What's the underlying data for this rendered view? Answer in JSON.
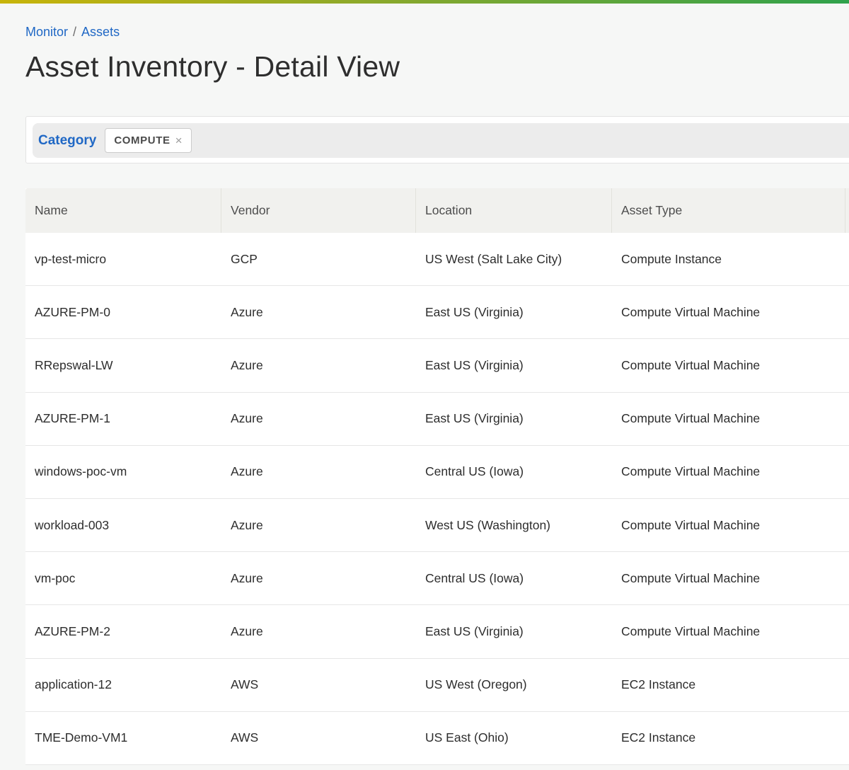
{
  "page": {
    "breadcrumb": {
      "items": [
        "Monitor",
        "Assets"
      ],
      "separator": "/"
    },
    "title": "Asset Inventory - Detail View"
  },
  "filters": {
    "field_label": "Category",
    "chips": [
      {
        "label": "COMPUTE",
        "remove_icon": "×"
      }
    ]
  },
  "table": {
    "columns": [
      "Name",
      "Vendor",
      "Location",
      "Asset Type"
    ],
    "rows": [
      {
        "name": "vp-test-micro",
        "vendor": "GCP",
        "location": "US West (Salt Lake City)",
        "asset_type": "Compute Instance"
      },
      {
        "name": "AZURE-PM-0",
        "vendor": "Azure",
        "location": "East US (Virginia)",
        "asset_type": "Compute Virtual Machine"
      },
      {
        "name": "RRepswal-LW",
        "vendor": "Azure",
        "location": "East US (Virginia)",
        "asset_type": "Compute Virtual Machine"
      },
      {
        "name": "AZURE-PM-1",
        "vendor": "Azure",
        "location": "East US (Virginia)",
        "asset_type": "Compute Virtual Machine"
      },
      {
        "name": "windows-poc-vm",
        "vendor": "Azure",
        "location": "Central US (Iowa)",
        "asset_type": "Compute Virtual Machine"
      },
      {
        "name": "workload-003",
        "vendor": "Azure",
        "location": "West US (Washington)",
        "asset_type": "Compute Virtual Machine"
      },
      {
        "name": "vm-poc",
        "vendor": "Azure",
        "location": "Central US (Iowa)",
        "asset_type": "Compute Virtual Machine"
      },
      {
        "name": "AZURE-PM-2",
        "vendor": "Azure",
        "location": "East US (Virginia)",
        "asset_type": "Compute Virtual Machine"
      },
      {
        "name": "application-12",
        "vendor": "AWS",
        "location": "US West (Oregon)",
        "asset_type": "EC2 Instance"
      },
      {
        "name": "TME-Demo-VM1",
        "vendor": "AWS",
        "location": "US East (Ohio)",
        "asset_type": "EC2 Instance"
      }
    ]
  },
  "colors": {
    "brand_gradient_start": "#c8b40a",
    "brand_gradient_end": "#2fa24c",
    "link_blue": "#2068c5",
    "page_background": "#f6f7f6",
    "table_header_background": "#f1f1ee",
    "row_border": "#e6e6e6"
  }
}
